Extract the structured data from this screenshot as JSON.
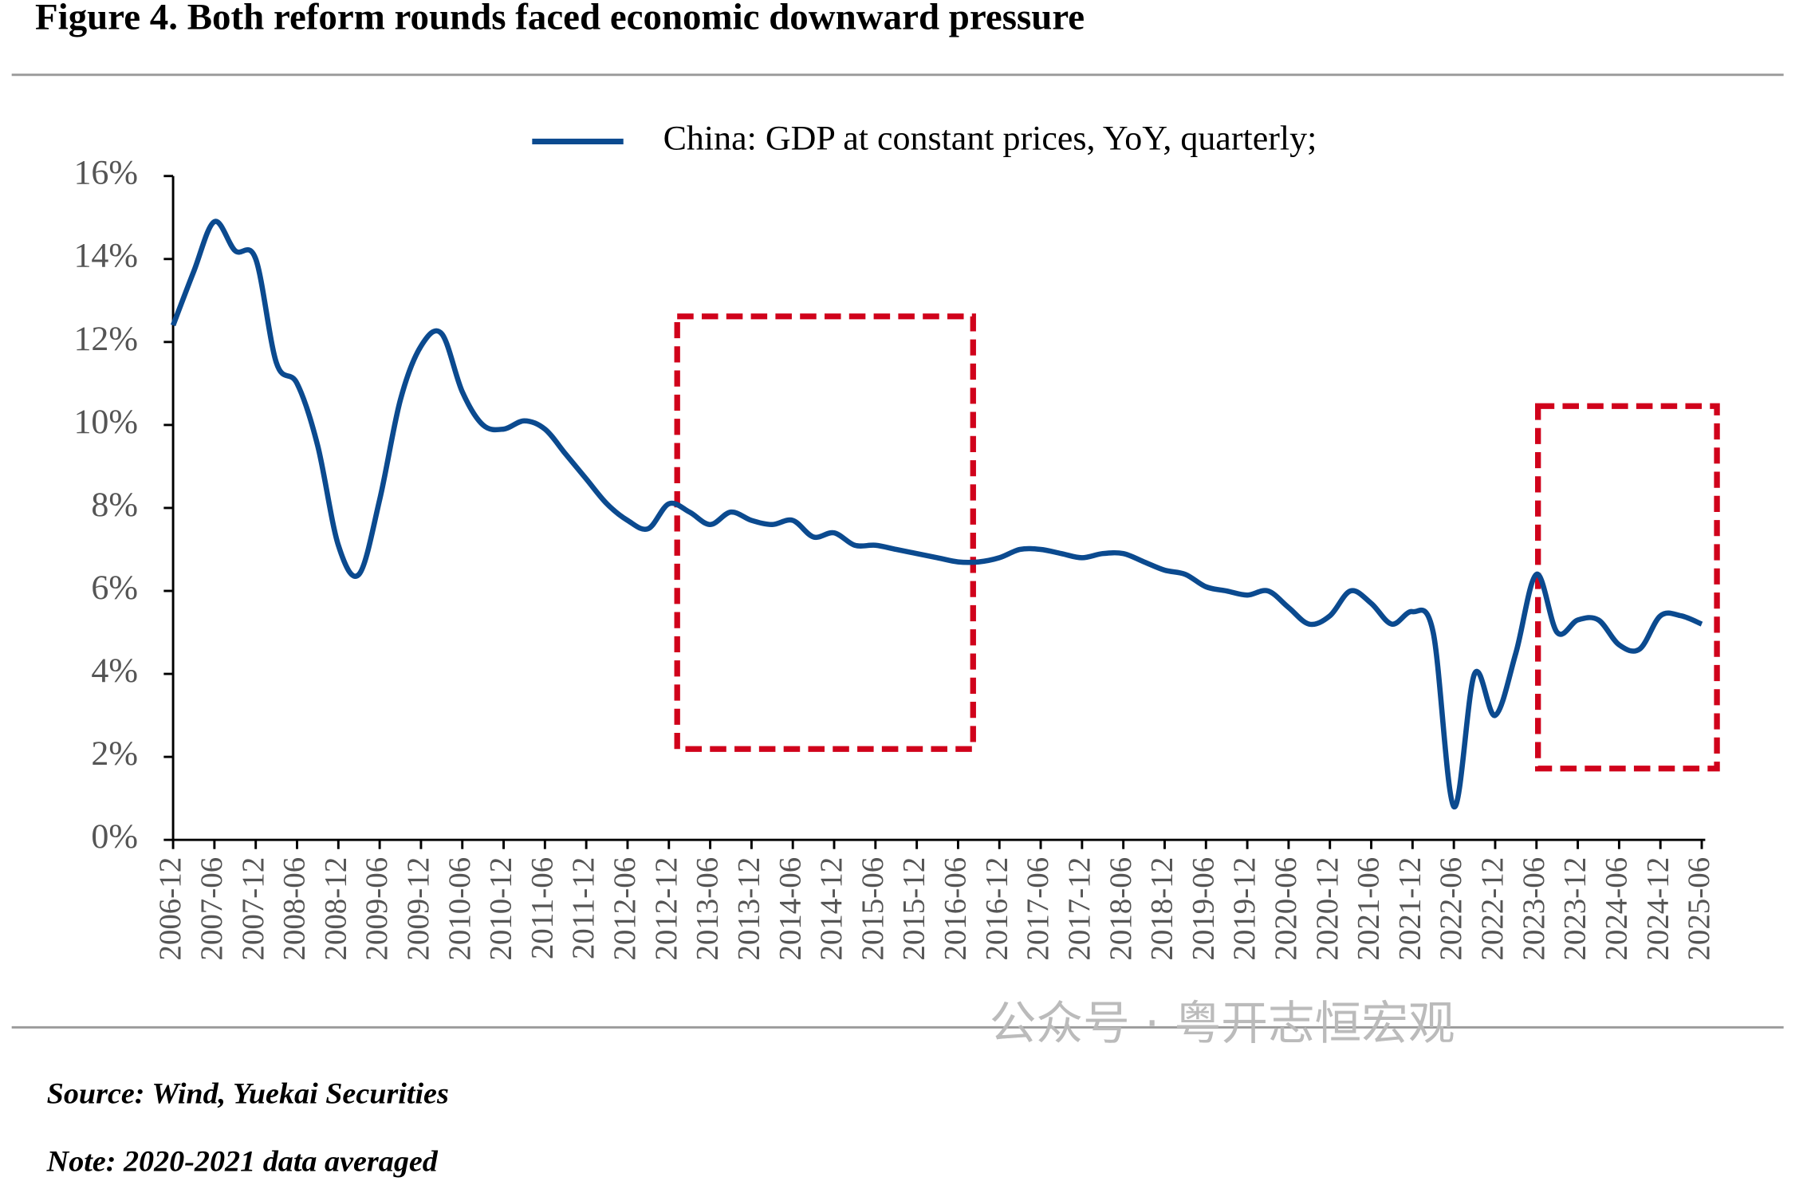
{
  "chart_data": {
    "type": "line",
    "title": "Figure 4. Both reform rounds faced economic downward pressure",
    "categories": [
      "2006-12",
      null,
      "2007-06",
      null,
      "2007-12",
      null,
      "2008-06",
      null,
      "2008-12",
      null,
      "2009-06",
      null,
      "2009-12",
      null,
      "2010-06",
      null,
      "2010-12",
      null,
      "2011-06",
      null,
      "2011-12",
      null,
      "2012-06",
      null,
      "2012-12",
      null,
      "2013-06",
      null,
      "2013-12",
      null,
      "2014-06",
      null,
      "2014-12",
      null,
      "2015-06",
      null,
      "2015-12",
      null,
      "2016-06",
      null,
      "2016-12",
      null,
      "2017-06",
      null,
      "2017-12",
      null,
      "2018-06",
      null,
      "2018-12",
      null,
      "2019-06",
      null,
      "2019-12",
      null,
      "2020-06",
      null,
      "2020-12",
      null,
      "2021-06",
      null,
      "2021-12",
      null,
      "2022-06",
      null,
      "2022-12",
      null,
      "2023-06",
      null,
      "2023-12",
      null,
      "2024-06",
      null,
      "2024-12",
      null,
      "2025-06"
    ],
    "series": [
      {
        "name": "China: GDP at constant prices, YoY, quarterly;",
        "color": "#0b4a8f",
        "values": [
          12.4,
          13.7,
          14.9,
          14.2,
          14.0,
          11.5,
          11.0,
          9.5,
          7.1,
          6.4,
          8.2,
          10.6,
          11.9,
          12.2,
          10.8,
          10.0,
          9.9,
          10.1,
          9.9,
          9.3,
          8.7,
          8.1,
          7.7,
          7.5,
          8.1,
          7.9,
          7.6,
          7.9,
          7.7,
          7.6,
          7.7,
          7.3,
          7.4,
          7.1,
          7.1,
          7.0,
          6.9,
          6.8,
          6.7,
          6.7,
          6.8,
          7.0,
          7.0,
          6.9,
          6.8,
          6.9,
          6.9,
          6.7,
          6.5,
          6.4,
          6.1,
          6.0,
          5.9,
          6.0,
          5.6,
          5.2,
          5.4,
          6.0,
          5.7,
          5.2,
          5.5,
          5.0,
          0.8,
          4.0,
          3.0,
          4.5,
          6.4,
          5.0,
          5.3,
          5.3,
          4.7,
          4.6,
          5.4,
          5.4,
          5.2
        ]
      }
    ],
    "ylim": [
      0,
      16
    ],
    "yticks": [
      {
        "value": 0,
        "label": "0%"
      },
      {
        "value": 2,
        "label": "2%"
      },
      {
        "value": 4,
        "label": "4%"
      },
      {
        "value": 6,
        "label": "6%"
      },
      {
        "value": 8,
        "label": "8%"
      },
      {
        "value": 10,
        "label": "10%"
      },
      {
        "value": 12,
        "label": "12%"
      },
      {
        "value": 14,
        "label": "14%"
      },
      {
        "value": 16,
        "label": "16%"
      }
    ],
    "grid": false,
    "legend": "top",
    "source": "Source: Wind, Yuekai Securities",
    "note": "Note: 2020-2021 data averaged",
    "watermark": "公众号 · 粤开志恒宏观"
  }
}
